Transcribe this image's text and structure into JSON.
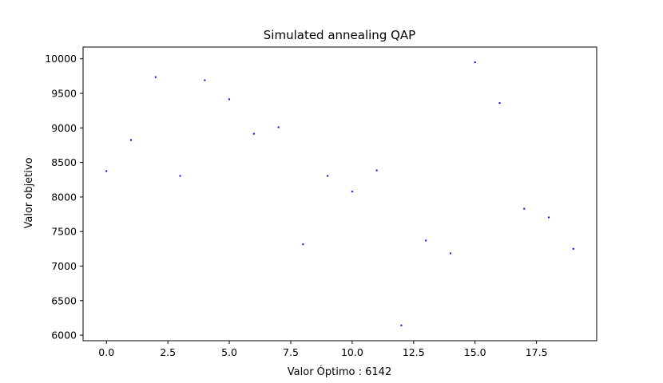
{
  "chart_data": {
    "type": "scatter",
    "title": "Simulated annealing QAP",
    "xlabel": "Valor Óptimo : 6142",
    "ylabel": "Valor objetivo",
    "xlim": [
      -0.95,
      19.95
    ],
    "ylim": [
      5920,
      10170
    ],
    "xticks": [
      0.0,
      2.5,
      5.0,
      7.5,
      10.0,
      12.5,
      15.0,
      17.5
    ],
    "xtick_labels": [
      "0.0",
      "2.5",
      "5.0",
      "7.5",
      "10.0",
      "12.5",
      "15.0",
      "17.5"
    ],
    "yticks": [
      6000,
      6500,
      7000,
      7500,
      8000,
      8500,
      9000,
      9500,
      10000
    ],
    "ytick_labels": [
      "6000",
      "6500",
      "7000",
      "7500",
      "8000",
      "8500",
      "9000",
      "9500",
      "10000"
    ],
    "grid": false,
    "point_color": "#0000ff",
    "series": [
      {
        "x": [
          0,
          1,
          2,
          3,
          4,
          5,
          6,
          7,
          8,
          9,
          10,
          11,
          12,
          13,
          14,
          15,
          16,
          17,
          18,
          19
        ],
        "y": [
          8375,
          8825,
          9735,
          8305,
          9690,
          9415,
          8915,
          9010,
          7315,
          8305,
          8080,
          8385,
          6142,
          7370,
          7185,
          9950,
          9360,
          7830,
          7705,
          7250
        ]
      }
    ]
  }
}
